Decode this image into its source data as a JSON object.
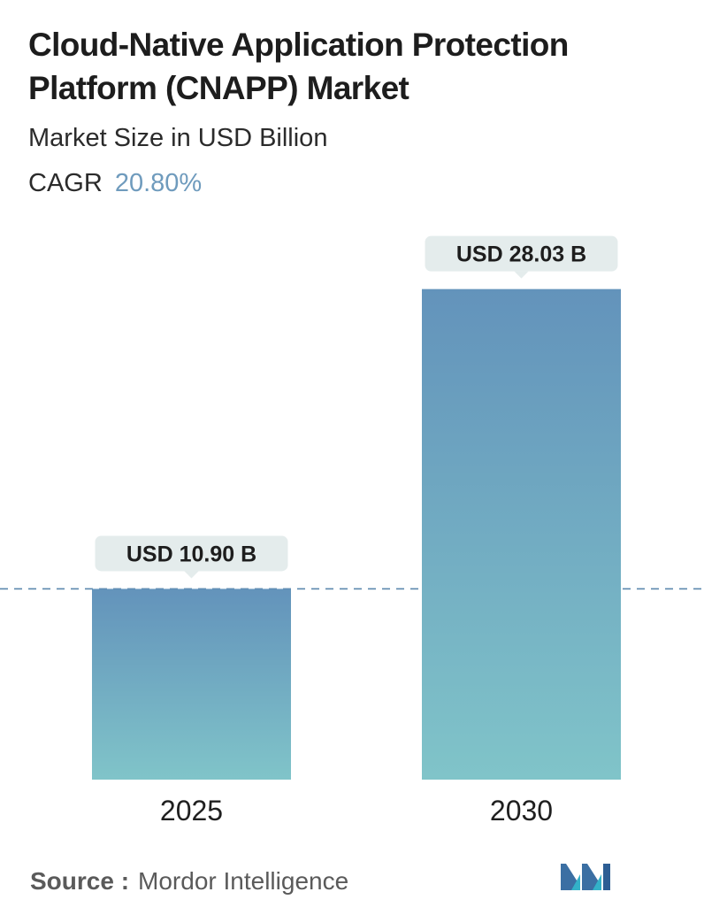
{
  "title": "Cloud-Native Application Protection Platform (CNAPP) Market",
  "subtitle": "Market Size in USD Billion",
  "cagr": {
    "label": "CAGR",
    "value": "20.80%"
  },
  "source": {
    "label": "Source :",
    "name": "Mordor Intelligence"
  },
  "logo_icon": "mordor-intelligence-logo-icon",
  "colors": {
    "bar_top": "#6393bb",
    "bar_bottom": "#80c4c9",
    "label_bg": "#e4ecec",
    "reference_line": "#5b87ad",
    "cagr_value": "#6f9bbd"
  },
  "chart_data": {
    "type": "bar",
    "categories": [
      "2025",
      "2030"
    ],
    "values": [
      10.9,
      28.03
    ],
    "data_labels": [
      "USD 10.90 B",
      "USD 28.03 B"
    ],
    "ylabel": "Market Size in USD Billion",
    "ylim": [
      0,
      31.3
    ],
    "grid": false,
    "reference_line": {
      "value": 10.9,
      "style": "dashed"
    }
  }
}
